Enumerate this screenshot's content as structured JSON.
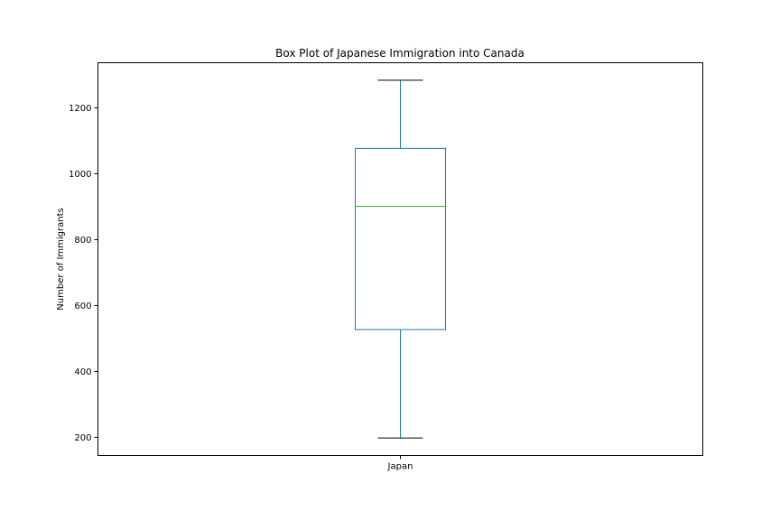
{
  "chart_data": {
    "type": "box",
    "title": "Box Plot of Japanese Immigration into Canada",
    "xlabel": "",
    "ylabel": "Number of Immigrants",
    "categories": [
      "Japan"
    ],
    "boxes": [
      {
        "category": "Japan",
        "whisker_low": 198,
        "q1": 527,
        "median": 901,
        "q3": 1077,
        "whisker_high": 1284
      }
    ],
    "ylim": [
      145,
      1337
    ],
    "yticks": [
      200,
      400,
      600,
      800,
      1000,
      1200
    ],
    "grid": false,
    "legend": "none",
    "colors": {
      "box": "#1f77b4",
      "median": "#2ca02c",
      "cap": "#000000"
    }
  }
}
